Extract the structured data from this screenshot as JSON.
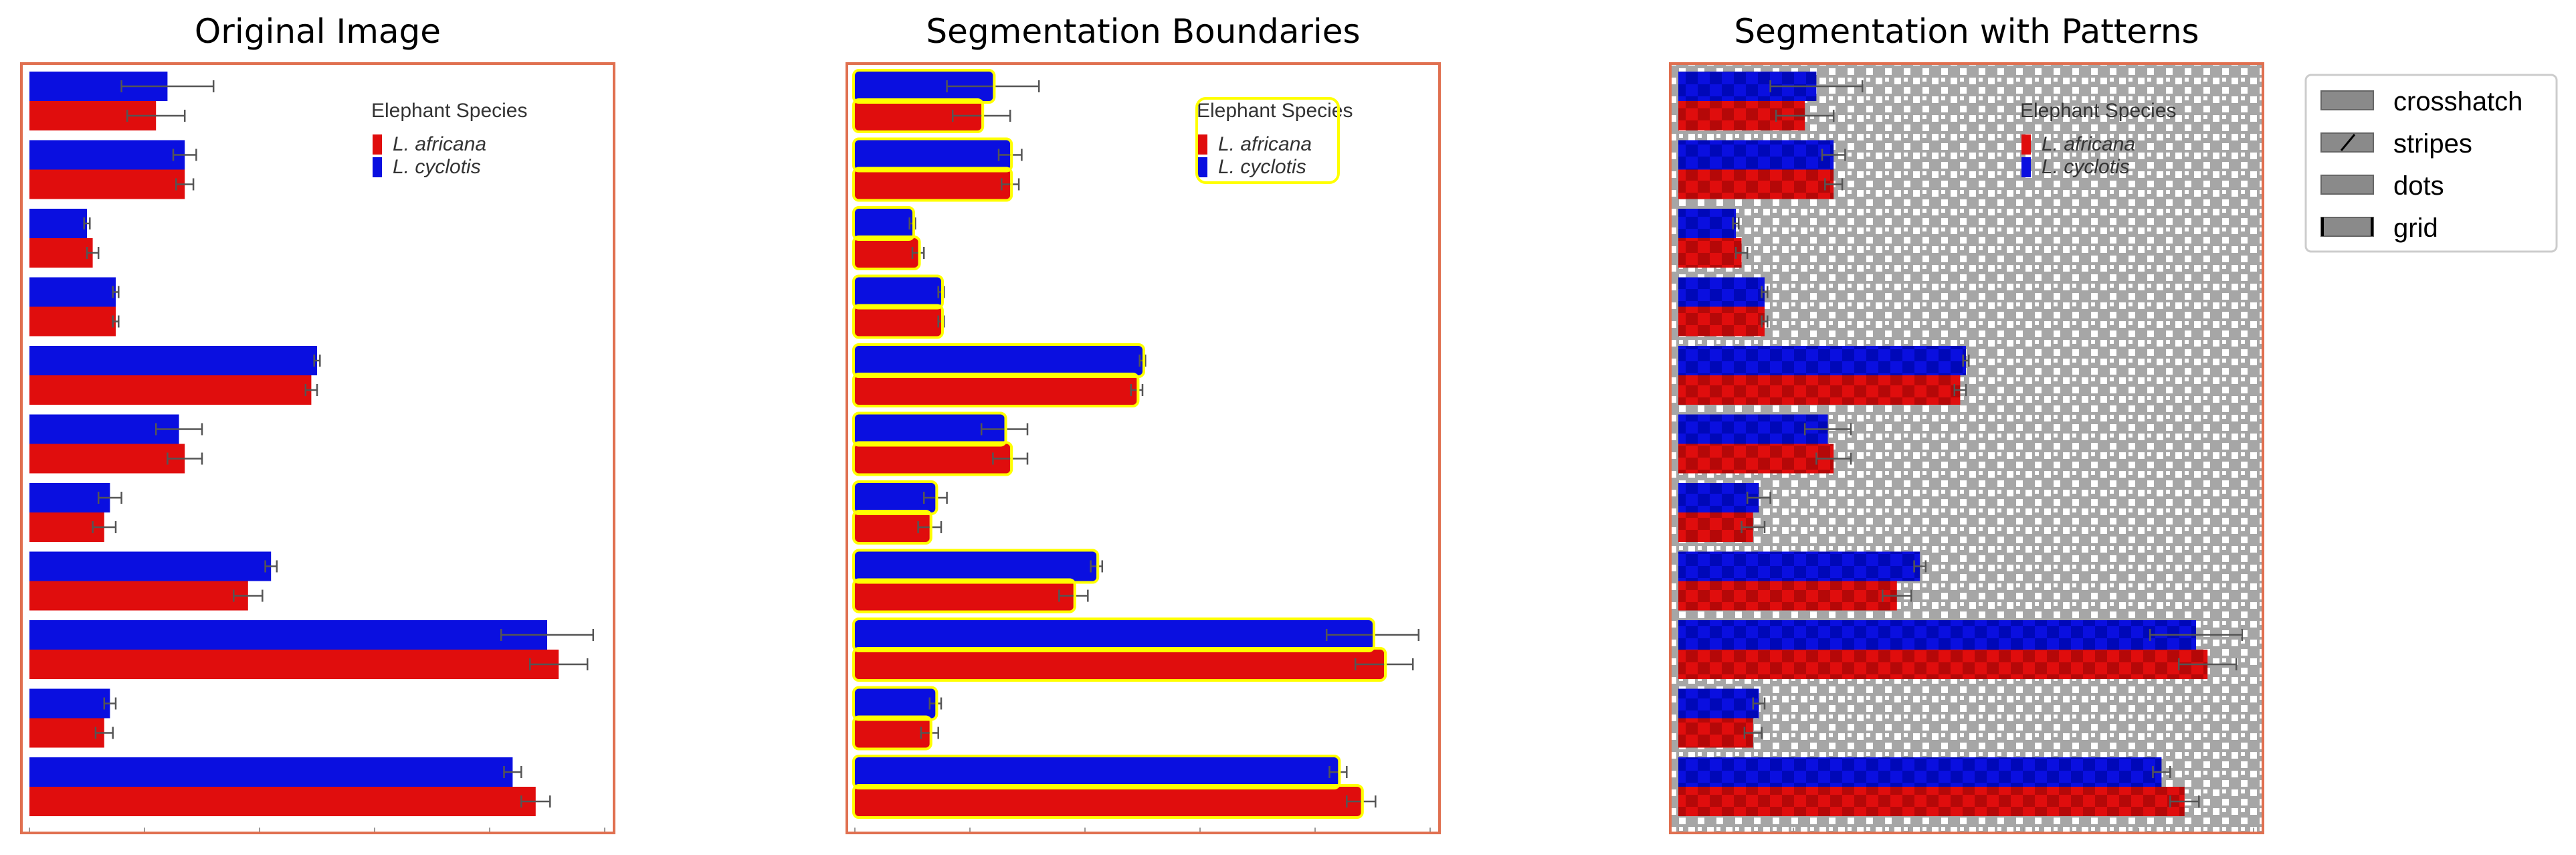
{
  "panels": [
    {
      "title": "Original Image"
    },
    {
      "title": "Segmentation Boundaries"
    },
    {
      "title": "Segmentation with Patterns"
    }
  ],
  "inner_legend": {
    "title": "Elephant Species",
    "entries": [
      {
        "label": "L. africana",
        "color": "#e00d0d"
      },
      {
        "label": "L. cyclotis",
        "color": "#0a0fe0"
      }
    ]
  },
  "pattern_legend": {
    "entries": [
      {
        "label": "crosshatch"
      },
      {
        "label": "stripes"
      },
      {
        "label": "dots"
      },
      {
        "label": "grid"
      }
    ]
  },
  "colors": {
    "africana": "#e00d0d",
    "cyclotis": "#0a0fe0",
    "frame": "#e07050",
    "boundary": "#ffff00",
    "pattern_gray": "#a6a6a6",
    "errorbar": "#555555"
  },
  "chart_data": {
    "type": "bar",
    "orientation": "horizontal",
    "xlim": [
      0,
      100
    ],
    "series": [
      {
        "name": "L. africana",
        "values": [
          22,
          27,
          11,
          15,
          49,
          27,
          13,
          38,
          92,
          13,
          88
        ],
        "errors": [
          5,
          1.5,
          1,
          0.5,
          1,
          3,
          2,
          2.5,
          5,
          1.5,
          2.5
        ]
      },
      {
        "name": "L. cyclotis",
        "values": [
          24,
          27,
          10,
          15,
          50,
          26,
          14,
          42,
          90,
          14,
          84
        ],
        "errors": [
          8,
          2,
          0.5,
          0.5,
          0.5,
          4,
          2,
          1,
          8,
          1,
          1.5
        ]
      }
    ]
  }
}
